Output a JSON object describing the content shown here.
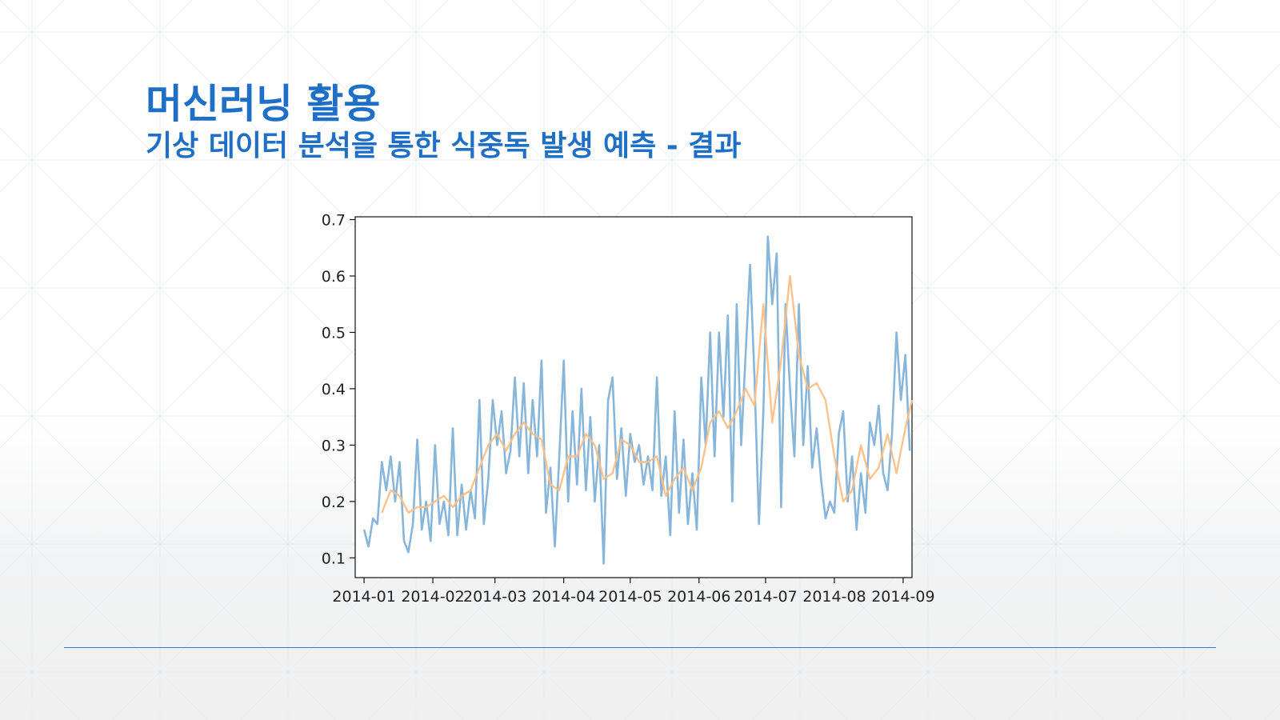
{
  "slide": {
    "title": "머신러닝 활용",
    "subtitle": "기상 데이터 분석을 통한 식중독 발생 예측 - 결과"
  },
  "colors": {
    "title": "#1f6fc6",
    "actual_series": "#7aaed6",
    "smoothed_series": "#ffbf86",
    "divider": "#2f7fc6"
  },
  "chart_data": {
    "type": "line",
    "x_axis": {
      "ticks": [
        "2014-01",
        "2014-02",
        "2014-03",
        "2014-04",
        "2014-05",
        "2014-06",
        "2014-07",
        "2014-08",
        "2014-09"
      ],
      "range": [
        "2013-12-28",
        "2014-09-05"
      ]
    },
    "y_axis": {
      "ticks": [
        "0.1",
        "0.2",
        "0.3",
        "0.4",
        "0.5",
        "0.6",
        "0.7"
      ],
      "range": [
        0.065,
        0.705
      ]
    },
    "grid": false,
    "legend": "none",
    "series": [
      {
        "color": "#7aaed6",
        "points": [
          [
            "2014-01-01",
            0.15
          ],
          [
            "2014-01-03",
            0.12
          ],
          [
            "2014-01-05",
            0.17
          ],
          [
            "2014-01-07",
            0.16
          ],
          [
            "2014-01-09",
            0.27
          ],
          [
            "2014-01-11",
            0.22
          ],
          [
            "2014-01-13",
            0.28
          ],
          [
            "2014-01-15",
            0.2
          ],
          [
            "2014-01-17",
            0.27
          ],
          [
            "2014-01-19",
            0.13
          ],
          [
            "2014-01-21",
            0.11
          ],
          [
            "2014-01-23",
            0.16
          ],
          [
            "2014-01-25",
            0.31
          ],
          [
            "2014-01-27",
            0.15
          ],
          [
            "2014-01-29",
            0.2
          ],
          [
            "2014-01-31",
            0.13
          ],
          [
            "2014-02-02",
            0.3
          ],
          [
            "2014-02-04",
            0.16
          ],
          [
            "2014-02-06",
            0.2
          ],
          [
            "2014-02-08",
            0.14
          ],
          [
            "2014-02-10",
            0.33
          ],
          [
            "2014-02-12",
            0.14
          ],
          [
            "2014-02-14",
            0.23
          ],
          [
            "2014-02-16",
            0.15
          ],
          [
            "2014-02-18",
            0.22
          ],
          [
            "2014-02-20",
            0.17
          ],
          [
            "2014-02-22",
            0.38
          ],
          [
            "2014-02-24",
            0.16
          ],
          [
            "2014-02-26",
            0.24
          ],
          [
            "2014-02-28",
            0.38
          ],
          [
            "2014-03-02",
            0.3
          ],
          [
            "2014-03-04",
            0.36
          ],
          [
            "2014-03-06",
            0.25
          ],
          [
            "2014-03-08",
            0.29
          ],
          [
            "2014-03-10",
            0.42
          ],
          [
            "2014-03-12",
            0.28
          ],
          [
            "2014-03-14",
            0.41
          ],
          [
            "2014-03-16",
            0.25
          ],
          [
            "2014-03-18",
            0.38
          ],
          [
            "2014-03-20",
            0.28
          ],
          [
            "2014-03-22",
            0.45
          ],
          [
            "2014-03-24",
            0.18
          ],
          [
            "2014-03-26",
            0.26
          ],
          [
            "2014-03-28",
            0.12
          ],
          [
            "2014-03-30",
            0.28
          ],
          [
            "2014-04-01",
            0.45
          ],
          [
            "2014-04-03",
            0.2
          ],
          [
            "2014-04-05",
            0.36
          ],
          [
            "2014-04-07",
            0.23
          ],
          [
            "2014-04-09",
            0.4
          ],
          [
            "2014-04-11",
            0.22
          ],
          [
            "2014-04-13",
            0.35
          ],
          [
            "2014-04-15",
            0.2
          ],
          [
            "2014-04-17",
            0.3
          ],
          [
            "2014-04-19",
            0.09
          ],
          [
            "2014-04-21",
            0.38
          ],
          [
            "2014-04-23",
            0.42
          ],
          [
            "2014-04-25",
            0.24
          ],
          [
            "2014-04-27",
            0.33
          ],
          [
            "2014-04-29",
            0.21
          ],
          [
            "2014-05-01",
            0.32
          ],
          [
            "2014-05-03",
            0.27
          ],
          [
            "2014-05-05",
            0.3
          ],
          [
            "2014-05-07",
            0.23
          ],
          [
            "2014-05-09",
            0.28
          ],
          [
            "2014-05-11",
            0.22
          ],
          [
            "2014-05-13",
            0.42
          ],
          [
            "2014-05-15",
            0.21
          ],
          [
            "2014-05-17",
            0.28
          ],
          [
            "2014-05-19",
            0.14
          ],
          [
            "2014-05-21",
            0.36
          ],
          [
            "2014-05-23",
            0.18
          ],
          [
            "2014-05-25",
            0.31
          ],
          [
            "2014-05-27",
            0.16
          ],
          [
            "2014-05-29",
            0.25
          ],
          [
            "2014-05-31",
            0.15
          ],
          [
            "2014-06-02",
            0.42
          ],
          [
            "2014-06-04",
            0.3
          ],
          [
            "2014-06-06",
            0.5
          ],
          [
            "2014-06-08",
            0.28
          ],
          [
            "2014-06-10",
            0.5
          ],
          [
            "2014-06-12",
            0.35
          ],
          [
            "2014-06-14",
            0.53
          ],
          [
            "2014-06-16",
            0.2
          ],
          [
            "2014-06-18",
            0.55
          ],
          [
            "2014-06-20",
            0.3
          ],
          [
            "2014-06-22",
            0.46
          ],
          [
            "2014-06-24",
            0.62
          ],
          [
            "2014-06-26",
            0.42
          ],
          [
            "2014-06-28",
            0.16
          ],
          [
            "2014-06-30",
            0.36
          ],
          [
            "2014-07-02",
            0.67
          ],
          [
            "2014-07-04",
            0.55
          ],
          [
            "2014-07-06",
            0.64
          ],
          [
            "2014-07-08",
            0.19
          ],
          [
            "2014-07-10",
            0.55
          ],
          [
            "2014-07-12",
            0.4
          ],
          [
            "2014-07-14",
            0.28
          ],
          [
            "2014-07-16",
            0.55
          ],
          [
            "2014-07-18",
            0.3
          ],
          [
            "2014-07-20",
            0.44
          ],
          [
            "2014-07-22",
            0.26
          ],
          [
            "2014-07-24",
            0.33
          ],
          [
            "2014-07-26",
            0.24
          ],
          [
            "2014-07-28",
            0.17
          ],
          [
            "2014-07-30",
            0.2
          ],
          [
            "2014-08-01",
            0.18
          ],
          [
            "2014-08-03",
            0.32
          ],
          [
            "2014-08-05",
            0.36
          ],
          [
            "2014-08-07",
            0.2
          ],
          [
            "2014-08-09",
            0.28
          ],
          [
            "2014-08-11",
            0.15
          ],
          [
            "2014-08-13",
            0.25
          ],
          [
            "2014-08-15",
            0.18
          ],
          [
            "2014-08-17",
            0.34
          ],
          [
            "2014-08-19",
            0.3
          ],
          [
            "2014-08-21",
            0.37
          ],
          [
            "2014-08-23",
            0.25
          ],
          [
            "2014-08-25",
            0.22
          ],
          [
            "2014-08-27",
            0.32
          ],
          [
            "2014-08-29",
            0.5
          ],
          [
            "2014-08-31",
            0.38
          ],
          [
            "2014-09-02",
            0.46
          ],
          [
            "2014-09-04",
            0.29
          ]
        ]
      },
      {
        "color": "#ffbf86",
        "points": [
          [
            "2014-01-09",
            0.18
          ],
          [
            "2014-01-13",
            0.22
          ],
          [
            "2014-01-17",
            0.21
          ],
          [
            "2014-01-21",
            0.18
          ],
          [
            "2014-01-25",
            0.19
          ],
          [
            "2014-01-29",
            0.19
          ],
          [
            "2014-02-02",
            0.2
          ],
          [
            "2014-02-06",
            0.21
          ],
          [
            "2014-02-10",
            0.19
          ],
          [
            "2014-02-14",
            0.21
          ],
          [
            "2014-02-18",
            0.22
          ],
          [
            "2014-02-22",
            0.26
          ],
          [
            "2014-02-26",
            0.3
          ],
          [
            "2014-03-02",
            0.32
          ],
          [
            "2014-03-06",
            0.29
          ],
          [
            "2014-03-10",
            0.32
          ],
          [
            "2014-03-14",
            0.34
          ],
          [
            "2014-03-18",
            0.32
          ],
          [
            "2014-03-22",
            0.31
          ],
          [
            "2014-03-26",
            0.23
          ],
          [
            "2014-03-30",
            0.22
          ],
          [
            "2014-04-03",
            0.28
          ],
          [
            "2014-04-07",
            0.28
          ],
          [
            "2014-04-11",
            0.32
          ],
          [
            "2014-04-15",
            0.3
          ],
          [
            "2014-04-19",
            0.24
          ],
          [
            "2014-04-23",
            0.25
          ],
          [
            "2014-04-27",
            0.31
          ],
          [
            "2014-05-01",
            0.3
          ],
          [
            "2014-05-05",
            0.27
          ],
          [
            "2014-05-09",
            0.27
          ],
          [
            "2014-05-13",
            0.28
          ],
          [
            "2014-05-17",
            0.21
          ],
          [
            "2014-05-21",
            0.24
          ],
          [
            "2014-05-25",
            0.26
          ],
          [
            "2014-05-29",
            0.22
          ],
          [
            "2014-06-02",
            0.26
          ],
          [
            "2014-06-06",
            0.34
          ],
          [
            "2014-06-10",
            0.36
          ],
          [
            "2014-06-14",
            0.33
          ],
          [
            "2014-06-18",
            0.36
          ],
          [
            "2014-06-22",
            0.4
          ],
          [
            "2014-06-26",
            0.37
          ],
          [
            "2014-06-30",
            0.55
          ],
          [
            "2014-07-04",
            0.34
          ],
          [
            "2014-07-08",
            0.45
          ],
          [
            "2014-07-12",
            0.6
          ],
          [
            "2014-07-16",
            0.46
          ],
          [
            "2014-07-20",
            0.4
          ],
          [
            "2014-07-24",
            0.41
          ],
          [
            "2014-07-28",
            0.38
          ],
          [
            "2014-08-01",
            0.28
          ],
          [
            "2014-08-05",
            0.2
          ],
          [
            "2014-08-09",
            0.22
          ],
          [
            "2014-08-13",
            0.3
          ],
          [
            "2014-08-17",
            0.24
          ],
          [
            "2014-08-21",
            0.26
          ],
          [
            "2014-08-25",
            0.32
          ],
          [
            "2014-08-29",
            0.25
          ],
          [
            "2014-09-02",
            0.33
          ],
          [
            "2014-09-05",
            0.38
          ]
        ]
      }
    ]
  }
}
